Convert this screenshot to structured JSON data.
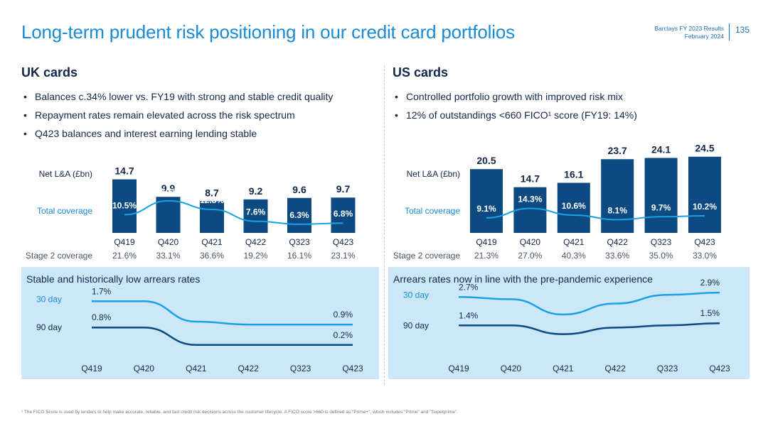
{
  "title": "Long-term prudent risk positioning in our credit card portfolios",
  "header": {
    "line1": "Barclays FY 2023 Results",
    "line2": "February 2024",
    "page": "135"
  },
  "uk": {
    "heading": "UK cards",
    "bullets": [
      "Balances c.34% lower vs. FY19 with strong and stable credit quality",
      "Repayment rates remain elevated across the risk spectrum",
      "Q423 balances and interest earning lending stable"
    ],
    "arrears_title": "Stable and historically low arrears rates"
  },
  "us": {
    "heading": "US cards",
    "bullets": [
      "Controlled portfolio growth with improved risk mix",
      "12% of outstandings <660 FICO¹ score (FY19: 14%)"
    ],
    "arrears_title": "Arrears rates now in line with the pre-pandemic experience"
  },
  "footnote": "¹ The FICO Score is used by lenders to help make accurate, reliable, and fast credit risk decisions across the customer lifecycle. A FICO score >660 is defined as \"Prime+\", which includes \"Prime\" and \"Superprime\".",
  "colors": {
    "bar": "#0d4a82",
    "line": "#1aa0e6",
    "dark_line": "#0d4a82",
    "accent": "#1a8ad4",
    "text": "#12274a",
    "box": "#cce8f8"
  },
  "chart_data": [
    {
      "id": "uk-bars",
      "type": "bar",
      "categories": [
        "Q419",
        "Q420",
        "Q421",
        "Q422",
        "Q323",
        "Q423"
      ],
      "series": [
        {
          "name": "Net L&A (£bn)",
          "values": [
            14.7,
            9.9,
            8.7,
            9.2,
            9.6,
            9.7
          ],
          "labels": [
            "14.7",
            "9.9",
            "8.7",
            "9.2",
            "9.6",
            "9.7"
          ]
        },
        {
          "name": "Total coverage",
          "values": [
            10.5,
            16.6,
            12.8,
            7.6,
            6.3,
            6.8
          ],
          "labels": [
            "10.5%",
            "16.6%",
            "12.8%",
            "7.6%",
            "6.3%",
            "6.8%"
          ]
        }
      ],
      "row_label": "Stage 2 coverage",
      "row_values": [
        "21.6%",
        "33.1%",
        "36.6%",
        "19.2%",
        "16.1%",
        "23.1%"
      ]
    },
    {
      "id": "us-bars",
      "type": "bar",
      "categories": [
        "Q419",
        "Q420",
        "Q421",
        "Q422",
        "Q323",
        "Q423"
      ],
      "series": [
        {
          "name": "Net L&A (£bn)",
          "values": [
            20.5,
            14.7,
            16.1,
            23.7,
            24.1,
            24.5
          ],
          "labels": [
            "20.5",
            "14.7",
            "16.1",
            "23.7",
            "24.1",
            "24.5"
          ]
        },
        {
          "name": "Total coverage",
          "values": [
            9.1,
            14.3,
            10.6,
            8.1,
            9.7,
            10.2
          ],
          "labels": [
            "9.1%",
            "14.3%",
            "10.6%",
            "8.1%",
            "9.7%",
            "10.2%"
          ]
        }
      ],
      "row_label": "Stage 2 coverage",
      "row_values": [
        "21.3%",
        "27.0%",
        "40.3%",
        "33.6%",
        "35.0%",
        "33.0%"
      ]
    },
    {
      "id": "uk-arrears",
      "type": "line",
      "categories": [
        "Q419",
        "Q420",
        "Q421",
        "Q422",
        "Q323",
        "Q423"
      ],
      "series": [
        {
          "name": "30 day",
          "values": [
            1.7,
            1.7,
            1.0,
            0.9,
            0.9,
            0.9
          ],
          "start_label": "1.7%",
          "end_label": "0.9%"
        },
        {
          "name": "90 day",
          "values": [
            0.8,
            0.8,
            0.2,
            0.2,
            0.2,
            0.2
          ],
          "start_label": "0.8%",
          "end_label": "0.2%"
        }
      ]
    },
    {
      "id": "us-arrears",
      "type": "line",
      "categories": [
        "Q419",
        "Q420",
        "Q421",
        "Q422",
        "Q323",
        "Q423"
      ],
      "series": [
        {
          "name": "30 day",
          "values": [
            2.7,
            2.6,
            1.9,
            2.4,
            2.8,
            2.9
          ],
          "start_label": "2.7%",
          "end_label": "2.9%"
        },
        {
          "name": "90 day",
          "values": [
            1.4,
            1.4,
            1.0,
            1.3,
            1.4,
            1.5
          ],
          "start_label": "1.4%",
          "end_label": "1.5%"
        }
      ]
    }
  ]
}
